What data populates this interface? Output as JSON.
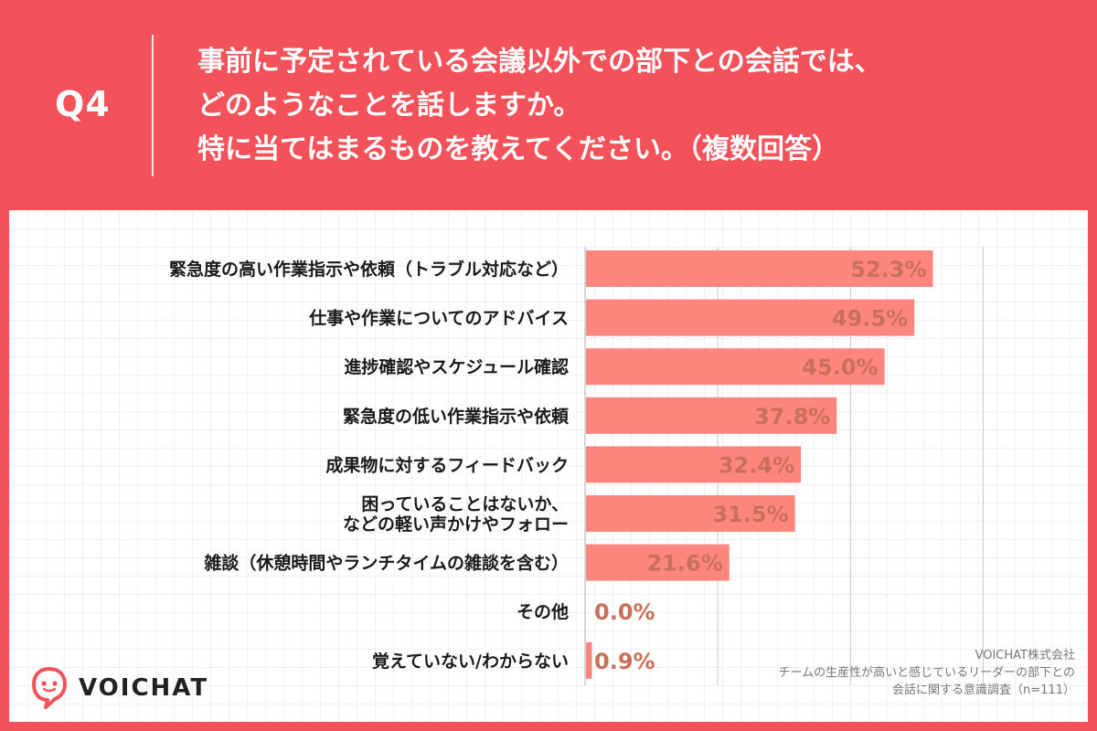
{
  "header": {
    "q_label": "Q4",
    "question_lines": [
      "事前に予定されている会議以外での部下との会話では、",
      "どのようなことを話しますか。",
      "特に当てはまるものを教えてください。（複数回答）"
    ]
  },
  "brand": {
    "logo_text": "VOICHAT"
  },
  "credit": {
    "company": "VOICHAT株式会社",
    "survey_line1": "チームの生産性が高いと感じているリーダーの部下との",
    "survey_line2": "会話に関する意識調査（n=111）"
  },
  "chart_data": {
    "type": "bar",
    "orientation": "horizontal",
    "unit": "%",
    "xlim": [
      0,
      70
    ],
    "grid": true,
    "categories": [
      "緊急度の高い作業指示や依頼（トラブル対応など）",
      "仕事や作業についてのアドバイス",
      "進捗確認やスケジュール確認",
      "緊急度の低い作業指示や依頼",
      "成果物に対するフィードバック",
      "困っていることはないか、\nなどの軽い声かけやフォロー",
      "雑談（休憩時間やランチタイムの雑談を含む）",
      "その他",
      "覚えていない/わからない"
    ],
    "values": [
      52.3,
      49.5,
      45.0,
      37.8,
      32.4,
      31.5,
      21.6,
      0.0,
      0.9
    ],
    "value_labels": [
      "52.3%",
      "49.5%",
      "45.0%",
      "37.8%",
      "32.4%",
      "31.5%",
      "21.6%",
      "0.0%",
      "0.9%"
    ],
    "colors": {
      "bar": "#ff867f",
      "label": "#c8705a",
      "grid": "#c9c9c9"
    }
  }
}
